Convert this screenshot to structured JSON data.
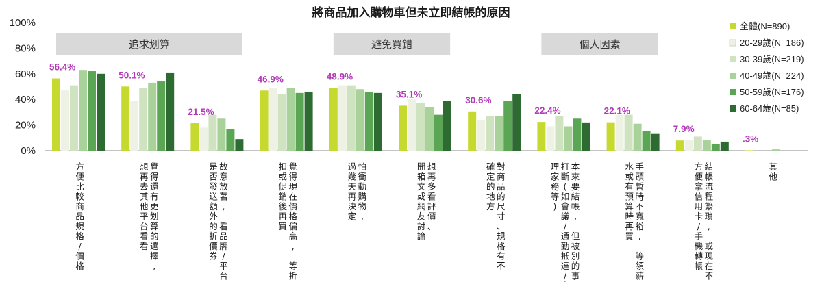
{
  "chart_data": {
    "type": "bar",
    "title": "將商品加入購物車但未立即結帳的原因",
    "ylim": [
      0,
      100
    ],
    "yticks": [
      "0%",
      "20%",
      "40%",
      "60%",
      "80%",
      "100%"
    ],
    "grid": false,
    "legend_position": "right",
    "group_headers": [
      {
        "label": "追求划算",
        "start": 0,
        "end": 3
      },
      {
        "label": "避免買錯",
        "start": 4,
        "end": 6
      },
      {
        "label": "個人因素",
        "start": 7,
        "end": 9
      }
    ],
    "categories": [
      [
        "方便比較商品規格/價格"
      ],
      [
        "覺得還有更划算的選擇,",
        "想再去其他平台看看"
      ],
      [
        "故意放著, 看品牌/平台",
        "是否發送額外的折價券"
      ],
      [
        "覺得現在價格偏高, 等折",
        "扣或促銷後再買"
      ],
      [
        "怕衝動購物,",
        "過幾天再決定"
      ],
      [
        "想再多看評價、",
        "開箱文或網友討論"
      ],
      [
        "對商品的尺寸、規格有不",
        "確定的地方"
      ],
      [
        "本來要結帳, 但被別的事",
        "打斷(如會議/通勤抵達/處",
        "理家務等)"
      ],
      [
        "手頭暫時不寬裕, 等領薪",
        "水或有預算時再買"
      ],
      [
        "結帳流程繁瑣, 或現在不",
        "方便拿信用卡/手機轉帳"
      ],
      [
        "其他"
      ]
    ],
    "data_labels": [
      "56.4%",
      "50.1%",
      "21.5%",
      "46.9%",
      "48.9%",
      "35.1%",
      "30.6%",
      "22.4%",
      "22.1%",
      "7.9%",
      ".3%"
    ],
    "series": [
      {
        "name": "全體(N=890)",
        "color": "#c6d92e",
        "values": [
          56.4,
          50.1,
          21.5,
          46.9,
          48.9,
          35.1,
          30.6,
          22.4,
          22.1,
          7.9,
          0.3
        ]
      },
      {
        "name": "20-29歲(N=186)",
        "color": "#eef2e4",
        "values": [
          47,
          39,
          18,
          49,
          51,
          40,
          24,
          19,
          28,
          8,
          0
        ]
      },
      {
        "name": "30-39歲(N=219)",
        "color": "#cfe3c0",
        "values": [
          51,
          49,
          28,
          44,
          51,
          37,
          27,
          27,
          28,
          11,
          0
        ]
      },
      {
        "name": "40-49歲(N=224)",
        "color": "#a9d19a",
        "values": [
          63,
          53,
          25,
          49,
          48,
          34,
          27,
          19,
          21,
          8,
          1
        ]
      },
      {
        "name": "50-59歲(N=176)",
        "color": "#5ba654",
        "values": [
          62,
          54,
          17,
          45,
          46,
          28,
          39,
          25,
          15,
          5,
          0
        ]
      },
      {
        "name": "60-64歲(N=85)",
        "color": "#2e6b32",
        "values": [
          60,
          61,
          9,
          46,
          45,
          39,
          44,
          22,
          13,
          7,
          0
        ]
      }
    ]
  }
}
